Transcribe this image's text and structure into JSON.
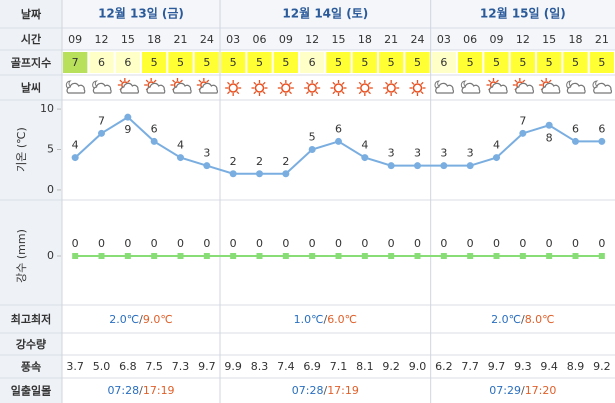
{
  "labels": {
    "date": "날짜",
    "time": "시간",
    "golf": "골프지수",
    "weather": "날씨",
    "minmax": "최고최저",
    "rain_amount": "강수량",
    "wind": "풍속",
    "sun": "일출일몰"
  },
  "dates": [
    "12월 13일 (금)",
    "12월 14일 (토)",
    "12월 15일 (일)"
  ],
  "times": [
    "09",
    "12",
    "15",
    "18",
    "21",
    "24",
    "03",
    "06",
    "09",
    "12",
    "15",
    "18",
    "21",
    "24",
    "03",
    "06",
    "09",
    "12",
    "15",
    "18",
    "21"
  ],
  "golf_index": [
    7,
    6,
    6,
    5,
    5,
    5,
    5,
    5,
    5,
    6,
    5,
    5,
    5,
    5,
    6,
    5,
    5,
    5,
    5,
    5,
    5
  ],
  "golf_index_colors": {
    "5": "#ffff33",
    "6": "#ffffc8",
    "7": "#b8e05a"
  },
  "minmax": [
    {
      "min": "2.0℃",
      "sep": "/",
      "max": "9.0℃"
    },
    {
      "min": "1.0℃",
      "sep": "/",
      "max": "6.0℃"
    },
    {
      "min": "2.0℃",
      "sep": "/",
      "max": "8.0℃"
    }
  ],
  "wind": [
    "3.7",
    "5.0",
    "6.8",
    "7.5",
    "7.3",
    "9.7",
    "9.9",
    "8.3",
    "7.4",
    "6.9",
    "7.1",
    "8.1",
    "9.2",
    "9.0",
    "6.2",
    "7.7",
    "9.7",
    "9.3",
    "9.4",
    "8.9",
    "9.2"
  ],
  "sun": [
    {
      "rise": "07:28",
      "sep": "/",
      "set": "17:19"
    },
    {
      "rise": "07:28",
      "sep": "/",
      "set": "17:19"
    },
    {
      "rise": "07:29",
      "sep": "/",
      "set": "17:20"
    }
  ],
  "chart_data": [
    {
      "type": "line",
      "y_label": "기온 (℃)",
      "values": [
        4,
        7,
        9,
        6,
        4,
        3,
        2,
        2,
        2,
        5,
        6,
        4,
        3,
        3,
        3,
        3,
        4,
        7,
        8,
        6,
        6
      ],
      "ylim": [
        -1,
        11
      ],
      "yticks": [
        0,
        5,
        10
      ],
      "color": "#7aaee0"
    },
    {
      "type": "line",
      "y_label": "강수 (mm)",
      "values": [
        0,
        0,
        0,
        0,
        0,
        0,
        0,
        0,
        0,
        0,
        0,
        0,
        0,
        0,
        0,
        0,
        0,
        0,
        0,
        0,
        0
      ],
      "ylim": [
        -1,
        1
      ],
      "yticks": [
        0
      ],
      "color": "#88dd77"
    }
  ]
}
